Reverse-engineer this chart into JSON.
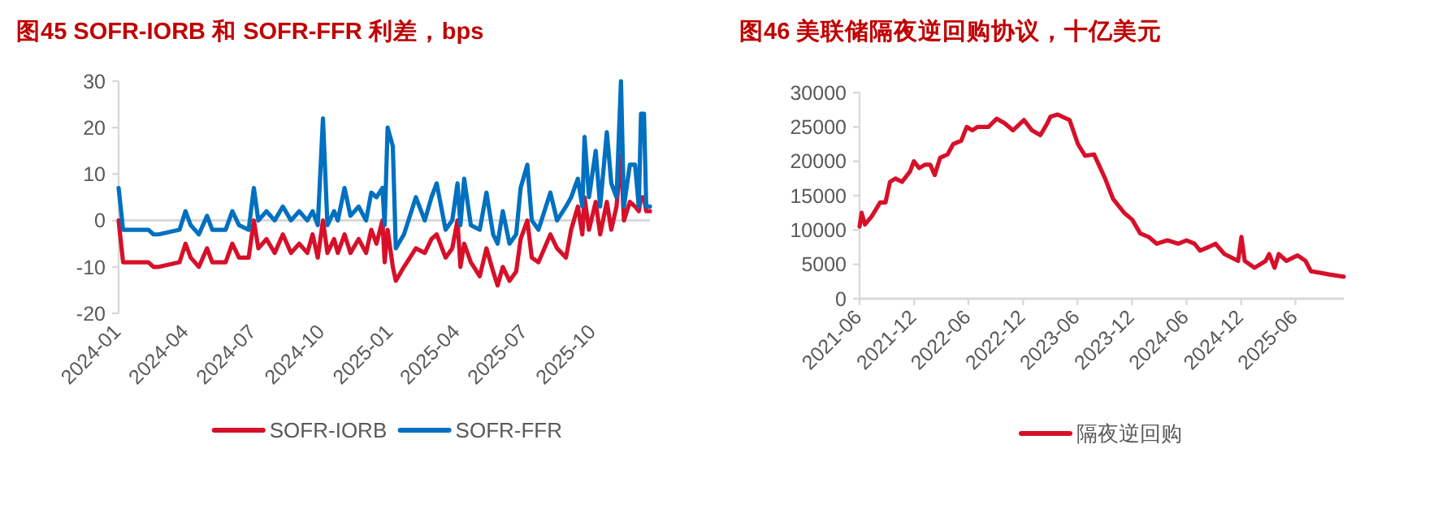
{
  "chart_data": [
    {
      "type": "line",
      "title": "图45  SOFR-IORB 和 SOFR-FFR 利差，bps",
      "legend": "bottom",
      "x": [
        "2024-01-01",
        "2024-01-07",
        "2024-02-10",
        "2024-02-17",
        "2024-02-24",
        "2024-03-23",
        "2024-03-31",
        "2024-04-07",
        "2024-04-18",
        "2024-04-29",
        "2024-05-06",
        "2024-05-24",
        "2024-06-02",
        "2024-06-11",
        "2024-06-24",
        "2024-07-01",
        "2024-07-07",
        "2024-07-18",
        "2024-07-29",
        "2024-08-09",
        "2024-08-20",
        "2024-08-31",
        "2024-09-11",
        "2024-09-18",
        "2024-09-25",
        "2024-10-02",
        "2024-10-08",
        "2024-10-17",
        "2024-10-22",
        "2024-10-31",
        "2024-11-08",
        "2024-11-19",
        "2024-11-29",
        "2024-12-06",
        "2024-12-13",
        "2024-12-21",
        "2024-12-24",
        "2024-12-28",
        "2025-01-04",
        "2025-01-08",
        "2025-01-19",
        "2025-02-04",
        "2025-02-16",
        "2025-02-25",
        "2025-03-04",
        "2025-03-16",
        "2025-03-25",
        "2025-04-01",
        "2025-04-05",
        "2025-04-10",
        "2025-04-19",
        "2025-05-01",
        "2025-05-10",
        "2025-05-19",
        "2025-05-25",
        "2025-06-01",
        "2025-06-10",
        "2025-06-19",
        "2025-06-25",
        "2025-07-04",
        "2025-07-10",
        "2025-07-19",
        "2025-08-04",
        "2025-08-13",
        "2025-08-25",
        "2025-09-01",
        "2025-09-10",
        "2025-09-16",
        "2025-09-19",
        "2025-09-25",
        "2025-10-04",
        "2025-10-10",
        "2025-10-19",
        "2025-10-25",
        "2025-11-01",
        "2025-11-07",
        "2025-11-11",
        "2025-11-19",
        "2025-11-26",
        "2025-12-01",
        "2025-12-04",
        "2025-12-08",
        "2025-12-11",
        "2025-12-16"
      ],
      "series": [
        {
          "name": "SOFR-IORB",
          "color": "#d7102a",
          "values": [
            0,
            -9,
            -9,
            -10,
            -10,
            -9,
            -5,
            -8,
            -10,
            -6,
            -9,
            -9,
            -5,
            -8,
            -8,
            0,
            -6,
            -4,
            -7,
            -3,
            -7,
            -5,
            -7,
            -3,
            -8,
            0,
            -7,
            -4,
            -7,
            -3,
            -7,
            -4,
            -7,
            -2,
            -5,
            0,
            -9,
            -2,
            -10,
            -13,
            -10,
            -6,
            -7,
            -4,
            -3,
            -8,
            -6,
            0,
            -10,
            -5,
            -9,
            -12,
            -6,
            -11,
            -14,
            -10,
            -13,
            -11,
            -4,
            0,
            -8,
            -9,
            -3,
            -6,
            -8,
            -2,
            3,
            -3,
            5,
            -2,
            4,
            -3,
            4,
            -2,
            3,
            14,
            0,
            4,
            3,
            2,
            5,
            5,
            2,
            2
          ]
        },
        {
          "name": "SOFR-FFR",
          "color": "#0070c0",
          "values": [
            7,
            -2,
            -2,
            -3,
            -3,
            -2,
            2,
            -1,
            -3,
            1,
            -2,
            -2,
            2,
            -1,
            -2,
            7,
            0,
            2,
            0,
            3,
            0,
            2,
            0,
            2,
            -1,
            22,
            -1,
            2,
            0,
            7,
            1,
            3,
            0,
            6,
            5,
            7,
            -1,
            20,
            16,
            -6,
            -3,
            5,
            0,
            5,
            8,
            -2,
            0,
            8,
            -1,
            9,
            -1,
            -2,
            6,
            -3,
            -5,
            2,
            -5,
            -3,
            7,
            12,
            0,
            -2,
            6,
            0,
            3,
            5,
            9,
            3,
            18,
            5,
            15,
            3,
            19,
            8,
            5,
            30,
            3,
            12,
            12,
            3,
            23,
            23,
            3,
            3
          ]
        }
      ],
      "xlim": [
        "2024-01-01",
        "2025-12-16"
      ],
      "xticks": [
        {
          "value": "2024-01-01",
          "label": "2024-01"
        },
        {
          "value": "2024-04-01",
          "label": "2024-04"
        },
        {
          "value": "2024-07-01",
          "label": "2024-07"
        },
        {
          "value": "2024-10-01",
          "label": "2024-10"
        },
        {
          "value": "2025-01-01",
          "label": "2025-01"
        },
        {
          "value": "2025-04-01",
          "label": "2025-04"
        },
        {
          "value": "2025-07-01",
          "label": "2025-07"
        },
        {
          "value": "2025-10-01",
          "label": "2025-10"
        }
      ],
      "ylim": [
        -20,
        30
      ],
      "yticks": [
        -20,
        -10,
        0,
        10,
        20,
        30
      ]
    },
    {
      "type": "line",
      "title": "图46  美联储隔夜逆回购协议，十亿美元",
      "legend": "bottom",
      "x": [
        "2021-06-01",
        "2021-06-08",
        "2021-06-19",
        "2021-07-12",
        "2021-08-09",
        "2021-08-27",
        "2021-09-11",
        "2021-09-29",
        "2021-10-21",
        "2021-11-17",
        "2021-11-30",
        "2021-12-18",
        "2022-01-06",
        "2022-01-24",
        "2022-02-08",
        "2022-02-26",
        "2022-03-23",
        "2022-04-11",
        "2022-05-08",
        "2022-05-26",
        "2022-06-14",
        "2022-07-01",
        "2022-08-07",
        "2022-09-04",
        "2022-10-01",
        "2022-10-28",
        "2022-12-04",
        "2022-12-31",
        "2023-01-28",
        "2023-02-20",
        "2023-03-03",
        "2023-03-27",
        "2023-05-06",
        "2023-06-03",
        "2023-06-27",
        "2023-07-27",
        "2023-09-02",
        "2023-09-29",
        "2023-11-05",
        "2023-12-02",
        "2023-12-29",
        "2024-01-26",
        "2024-02-22",
        "2024-03-29",
        "2024-05-04",
        "2024-06-01",
        "2024-06-28",
        "2024-07-16",
        "2024-08-13",
        "2024-09-06",
        "2024-10-06",
        "2024-11-21",
        "2024-12-02",
        "2024-12-13",
        "2025-01-15",
        "2025-02-21",
        "2025-03-05",
        "2025-03-23",
        "2025-04-06",
        "2025-05-02",
        "2025-06-08",
        "2025-07-05",
        "2025-07-23",
        "2025-08-20",
        "2025-09-26",
        "2025-11-10"
      ],
      "series": [
        {
          "name": "隔夜逆回购",
          "color": "#d7102a",
          "values": [
            10500,
            12500,
            10800,
            12000,
            14000,
            14000,
            17000,
            17500,
            17000,
            18500,
            20000,
            19000,
            19500,
            19500,
            18000,
            20500,
            21000,
            22500,
            23000,
            25000,
            24500,
            25000,
            25000,
            26200,
            25500,
            24500,
            26000,
            24500,
            23800,
            25500,
            26500,
            26800,
            26000,
            22500,
            20800,
            21000,
            17500,
            14500,
            12500,
            11500,
            9500,
            9000,
            8000,
            8500,
            8000,
            8500,
            8000,
            7000,
            7500,
            8000,
            6500,
            5500,
            9000,
            5500,
            4500,
            5500,
            6500,
            4500,
            6500,
            5500,
            6300,
            5500,
            4000,
            3800,
            3500,
            3200
          ]
        }
      ],
      "xlim": [
        "2021-06-01",
        "2025-11-10"
      ],
      "xticks": [
        {
          "value": "2021-06-01",
          "label": "2021-06"
        },
        {
          "value": "2021-12-01",
          "label": "2021-12"
        },
        {
          "value": "2022-06-01",
          "label": "2022-06"
        },
        {
          "value": "2022-12-01",
          "label": "2022-12"
        },
        {
          "value": "2023-06-01",
          "label": "2023-06"
        },
        {
          "value": "2023-12-01",
          "label": "2023-12"
        },
        {
          "value": "2024-06-01",
          "label": "2024-06"
        },
        {
          "value": "2024-12-01",
          "label": "2024-12"
        },
        {
          "value": "2025-06-01",
          "label": "2025-06"
        }
      ],
      "ylim": [
        0,
        30000
      ],
      "yticks": [
        0,
        5000,
        10000,
        15000,
        20000,
        25000,
        30000
      ]
    }
  ]
}
